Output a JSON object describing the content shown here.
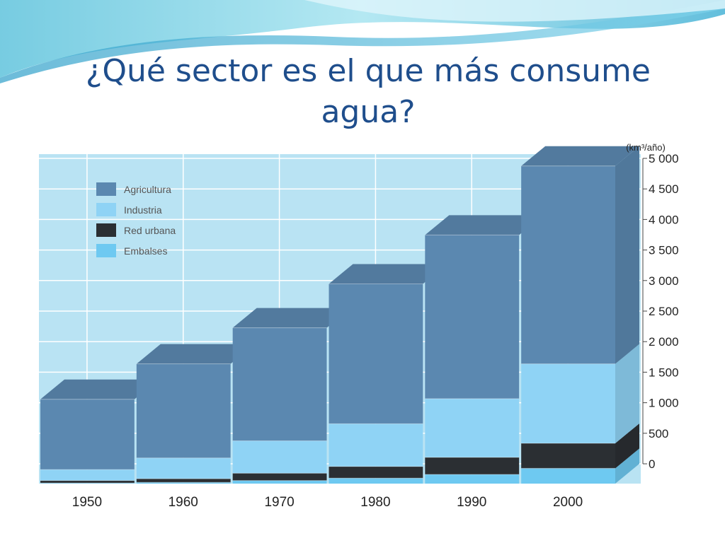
{
  "slide": {
    "title": "¿Qué sector es el que más consume agua?"
  },
  "colors": {
    "agricultura": "#5b88b0",
    "industria": "#8fd3f5",
    "red_urbana": "#2b2f33",
    "embalses": "#6ec9f1",
    "plot_background": "#b9e3f3",
    "grid": "#ffffff",
    "title": "#1f4e8c"
  },
  "chart_data": {
    "type": "bar",
    "stacked": true,
    "three_d": true,
    "title": "",
    "xlabel": "",
    "ylabel": "(km³/año)",
    "ylim": [
      0,
      5000
    ],
    "y_axis_position": "right",
    "yticks": [
      0,
      500,
      1000,
      1500,
      2000,
      2500,
      3000,
      3500,
      4000,
      4500,
      5000
    ],
    "ytick_labels": [
      "0",
      "500",
      "1 000",
      "1 500",
      "2 000",
      "2 500",
      "3 000",
      "3 500",
      "4 000",
      "4 500",
      "5 000"
    ],
    "categories": [
      "1950",
      "1960",
      "1970",
      "1980",
      "1990",
      "2000"
    ],
    "legend_position": "top-left",
    "grid": true,
    "series": [
      {
        "name": "Embalses",
        "color_key": "embalses",
        "values": [
          10,
          20,
          50,
          90,
          150,
          250
        ]
      },
      {
        "name": "Red urbana",
        "color_key": "red_urbana",
        "values": [
          40,
          60,
          120,
          190,
          280,
          410
        ]
      },
      {
        "name": "Industria",
        "color_key": "industria",
        "values": [
          180,
          340,
          530,
          700,
          960,
          1300
        ]
      },
      {
        "name": "Agricultura",
        "color_key": "agricultura",
        "values": [
          1150,
          1540,
          1850,
          2290,
          2680,
          3240
        ]
      }
    ],
    "legend_order": [
      "Agricultura",
      "Industria",
      "Red urbana",
      "Embalses"
    ]
  }
}
